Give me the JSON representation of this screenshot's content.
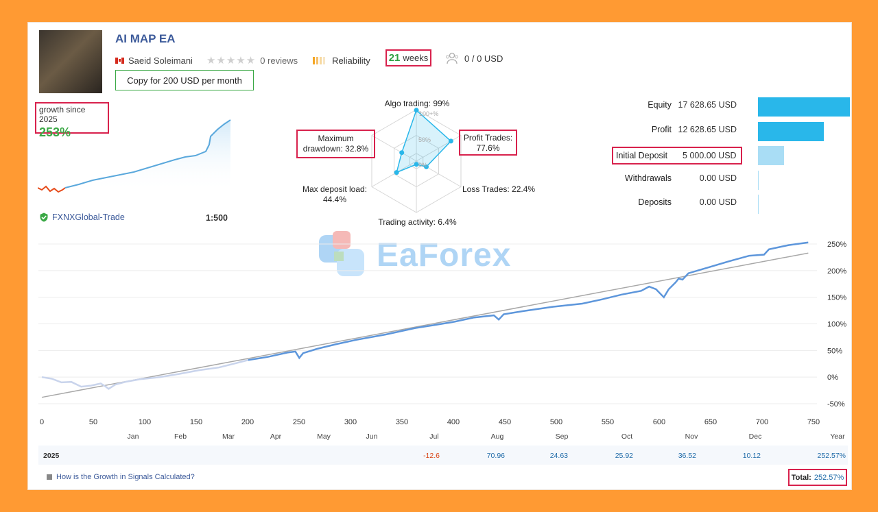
{
  "header": {
    "title": "AI MAP EA",
    "author": "Saeid Soleimani",
    "reviews": "0 reviews",
    "reliability": "Reliability",
    "weeks_num": "21",
    "weeks_word": "weeks",
    "subscribers": "0 / 0 USD",
    "copy_button": "Copy for 200 USD per month"
  },
  "growth": {
    "label": "growth since 2025",
    "value": "253%",
    "broker": "FXNXGlobal-Trade",
    "leverage": "1:500"
  },
  "radar": {
    "algo": "Algo trading: 99%",
    "profit_trades_1": "Profit Trades:",
    "profit_trades_2": "77.6%",
    "loss_trades": "Loss Trades: 22.4%",
    "trading_activity": "Trading activity: 6.4%",
    "max_deposit_1": "Max deposit load:",
    "max_deposit_2": "44.4%",
    "max_dd_1": "Maximum",
    "max_dd_2": "drawdown: 32.8%",
    "ring_100": "100+%",
    "ring_50": "50%",
    "ring_0": "0%",
    "values": {
      "algo": 99,
      "profit": 77.6,
      "loss": 22.4,
      "activity": 6.4,
      "deposit_load": 44.4,
      "drawdown": 32.8
    }
  },
  "stats": [
    {
      "label": "Equity",
      "value": "17 628.65 USD",
      "amount": 17628.65,
      "color": "#29b7ea"
    },
    {
      "label": "Profit",
      "value": "12 628.65 USD",
      "amount": 12628.65,
      "color": "#29b7ea"
    },
    {
      "label": "Initial Deposit",
      "value": "5 000.00 USD",
      "amount": 5000,
      "color": "#a9ddf5"
    },
    {
      "label": "Withdrawals",
      "value": "0.00 USD",
      "amount": 0,
      "color": "#a9ddf5"
    },
    {
      "label": "Deposits",
      "value": "0.00 USD",
      "amount": 0,
      "color": "#a9ddf5"
    }
  ],
  "watermark": "EaForex",
  "chart_data": {
    "type": "line",
    "xlim": [
      0,
      750
    ],
    "ylim": [
      -50,
      250
    ],
    "x_ticks": [
      "0",
      "50",
      "100",
      "150",
      "200",
      "250",
      "300",
      "350",
      "400",
      "450",
      "500",
      "550",
      "600",
      "650",
      "700",
      "750"
    ],
    "y_ticks": [
      "250%",
      "200%",
      "150%",
      "100%",
      "50%",
      "0%",
      "-50%"
    ],
    "months": [
      "Jan",
      "Feb",
      "Mar",
      "Apr",
      "May",
      "Jun",
      "Jul",
      "Aug",
      "Sep",
      "Oct",
      "Nov",
      "Dec",
      "Year"
    ],
    "series": [
      {
        "points": [
          [
            0,
            0
          ],
          [
            10,
            -3
          ],
          [
            20,
            -10
          ],
          [
            30,
            -9
          ],
          [
            40,
            -18
          ],
          [
            50,
            -16
          ],
          [
            60,
            -12
          ],
          [
            65,
            -18
          ],
          [
            68,
            -22
          ],
          [
            75,
            -14
          ],
          [
            85,
            -9
          ],
          [
            100,
            -4
          ],
          [
            120,
            0
          ],
          [
            140,
            6
          ],
          [
            160,
            13
          ],
          [
            180,
            18
          ],
          [
            195,
            25
          ],
          [
            210,
            32
          ],
          [
            230,
            38
          ],
          [
            250,
            46
          ],
          [
            258,
            48
          ],
          [
            262,
            36
          ],
          [
            266,
            45
          ],
          [
            280,
            53
          ],
          [
            300,
            62
          ],
          [
            320,
            70
          ],
          [
            350,
            80
          ],
          [
            380,
            92
          ],
          [
            400,
            98
          ],
          [
            420,
            104
          ],
          [
            440,
            112
          ],
          [
            460,
            116
          ],
          [
            465,
            108
          ],
          [
            470,
            118
          ],
          [
            490,
            124
          ],
          [
            520,
            132
          ],
          [
            550,
            138
          ],
          [
            570,
            146
          ],
          [
            590,
            155
          ],
          [
            610,
            162
          ],
          [
            618,
            170
          ],
          [
            625,
            165
          ],
          [
            633,
            150
          ],
          [
            638,
            165
          ],
          [
            645,
            178
          ],
          [
            648,
            185
          ],
          [
            652,
            183
          ],
          [
            658,
            195
          ],
          [
            680,
            207
          ],
          [
            700,
            218
          ],
          [
            720,
            228
          ],
          [
            735,
            230
          ],
          [
            740,
            240
          ],
          [
            760,
            248
          ],
          [
            780,
            253
          ]
        ]
      },
      {
        "points": [
          [
            0,
            -38
          ],
          [
            780,
            233
          ]
        ]
      }
    ]
  },
  "year_row": {
    "year": "2025",
    "values": [
      "-12.6",
      "70.96",
      "24.63",
      "25.92",
      "36.52",
      "10.12",
      "252.57%"
    ]
  },
  "footer": {
    "help_link": "How is the Growth in Signals Calculated?",
    "total_label": "Total:",
    "total_value": "252.57%"
  }
}
